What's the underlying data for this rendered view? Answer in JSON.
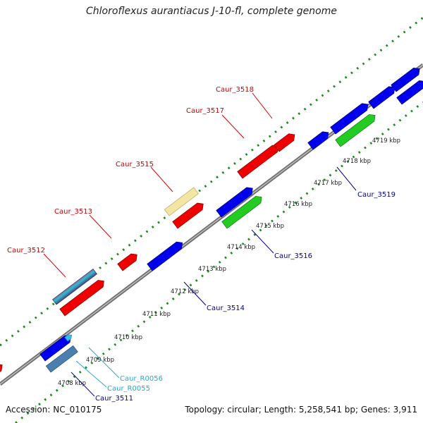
{
  "title": "Chloroflexus aurantiacus J-10-fl, complete genome",
  "footer": {
    "accession": "Accession: NC_010175",
    "summary": "Topology: circular; Length: 5,258,541 bp; Genes: 3,911"
  },
  "colors": {
    "backbone": "#8c8c8c",
    "dotted_scale": "#1e8a1e",
    "cds": "#0000ee",
    "cds_alt": "#ee0000",
    "rna": "#22cc22",
    "pseudo": "#f0e6a0",
    "other": "#4a7fb0",
    "label_top": "#cc0000",
    "label_bottom": "#000099",
    "label_rna": "#22aacc"
  },
  "kbp_ticks": [
    {
      "label": "4708 kbp"
    },
    {
      "label": "4709 kbp"
    },
    {
      "label": "4710 kbp"
    },
    {
      "label": "4711 kbp"
    },
    {
      "label": "4712 kbp"
    },
    {
      "label": "4713 kbp"
    },
    {
      "label": "4714 kbp"
    },
    {
      "label": "4715 kbp"
    },
    {
      "label": "4716 kbp"
    },
    {
      "label": "4717 kbp"
    },
    {
      "label": "4718 kbp"
    },
    {
      "label": "4719 kbp"
    }
  ],
  "gene_labels": [
    {
      "text": "Caur_3512"
    },
    {
      "text": "Caur_3513"
    },
    {
      "text": "Caur_3515"
    },
    {
      "text": "Caur_3517"
    },
    {
      "text": "Caur_3518"
    },
    {
      "text": "Caur_3519"
    },
    {
      "text": "Caur_3516"
    },
    {
      "text": "Caur_3514"
    },
    {
      "text": "Caur_R0056"
    },
    {
      "text": "Caur_R0055"
    },
    {
      "text": "Caur_3511"
    }
  ]
}
